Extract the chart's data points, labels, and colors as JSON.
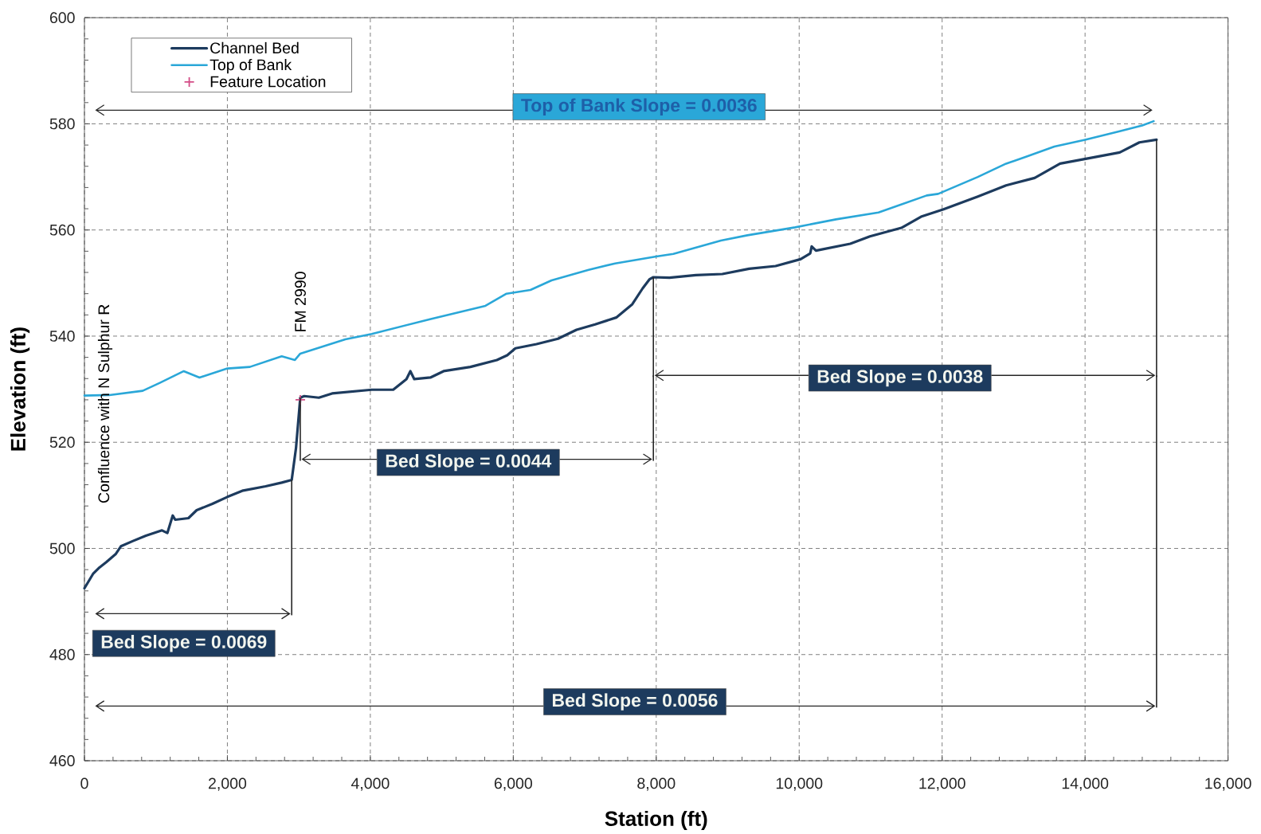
{
  "chart_data": {
    "type": "line",
    "xlabel": "Station (ft)",
    "ylabel": "Elevation (ft)",
    "xlim": [
      0,
      16000
    ],
    "xticks": [
      0,
      {
        "value": 2000,
        "label": "2,000"
      },
      {
        "value": 4000,
        "label": "4,000"
      },
      {
        "value": 6000,
        "label": "6,000"
      },
      {
        "value": 8000,
        "label": "8,000"
      },
      {
        "value": 10000,
        "label": "10,000"
      },
      {
        "value": 12000,
        "label": "12,000"
      },
      {
        "value": 14000,
        "label": "14,000"
      },
      {
        "value": 16000,
        "label": "16,000"
      }
    ],
    "ylim": [
      460,
      600
    ],
    "yticks": [
      460,
      480,
      500,
      520,
      540,
      560,
      580,
      600
    ],
    "grid": true,
    "legend": "top left",
    "series": [
      {
        "name": "Channel Bed",
        "color": "#1d3b5e",
        "x": [
          0,
          120,
          210,
          305,
          435,
          510,
          680,
          860,
          1085,
          1160,
          1235,
          1270,
          1455,
          1570,
          1790,
          2000,
          2220,
          2535,
          2760,
          2900,
          2960,
          3020,
          3075,
          3280,
          3465,
          4020,
          4320,
          4505,
          4560,
          4615,
          4840,
          5025,
          5400,
          5770,
          5915,
          6030,
          6325,
          6625,
          6885,
          7145,
          7440,
          7665,
          7810,
          7905,
          7960,
          8185,
          8555,
          8925,
          9300,
          9670,
          10020,
          10155,
          10175,
          10235,
          10715,
          10990,
          11430,
          11705,
          12020,
          12500,
          12895,
          13295,
          13650,
          13965,
          14485,
          14760,
          15000
        ],
        "values": [
          492.5,
          495.2,
          496.4,
          497.4,
          498.9,
          500.4,
          501.4,
          502.4,
          503.4,
          502.9,
          506.2,
          505.4,
          505.7,
          507.2,
          508.4,
          509.7,
          510.9,
          511.7,
          512.4,
          512.9,
          518.9,
          528.4,
          528.7,
          528.4,
          529.2,
          529.9,
          529.9,
          531.9,
          533.4,
          531.9,
          532.2,
          533.4,
          534.2,
          535.5,
          536.4,
          537.7,
          538.5,
          539.5,
          541.2,
          542.2,
          543.5,
          546.0,
          549.0,
          550.7,
          551.1,
          551.0,
          551.5,
          551.7,
          552.7,
          553.2,
          554.5,
          555.6,
          556.9,
          556.1,
          557.4,
          558.8,
          560.4,
          562.5,
          563.9,
          566.3,
          568.4,
          569.8,
          572.5,
          573.3,
          574.6,
          576.5,
          577.0
        ]
      },
      {
        "name": "Top of Bank",
        "color": "#2aa7d8",
        "x": [
          0,
          350,
          815,
          1055,
          1390,
          1610,
          2000,
          2315,
          2760,
          2945,
          3020,
          3650,
          4020,
          4835,
          5610,
          5905,
          6240,
          6535,
          7055,
          7425,
          8000,
          8240,
          8905,
          9275,
          9945,
          10515,
          11110,
          11785,
          11945,
          12500,
          12895,
          13175,
          13570,
          14000,
          14485,
          14800,
          14960
        ],
        "values": [
          528.8,
          528.9,
          529.7,
          531.2,
          533.4,
          532.2,
          533.9,
          534.2,
          536.2,
          535.5,
          536.7,
          539.4,
          540.4,
          543.2,
          545.7,
          548.0,
          548.7,
          550.5,
          552.5,
          553.7,
          555.0,
          555.5,
          558.0,
          559.0,
          560.5,
          562.0,
          563.3,
          566.5,
          566.8,
          570.0,
          572.5,
          573.8,
          575.7,
          577.0,
          578.6,
          579.7,
          580.5
        ]
      },
      {
        "name": "Feature Location",
        "type": "scatter",
        "marker": "cross",
        "color": "#d34c86",
        "x": [
          3020
        ],
        "values": [
          528
        ]
      }
    ],
    "annotations": [
      "Confluence with N Sulphur R",
      "FM 2990",
      "Top of Bank Slope = 0.0036",
      "Bed Slope = 0.0069",
      "Bed Slope = 0.0044",
      "Bed Slope = 0.0038",
      "Bed Slope = 0.0056"
    ]
  }
}
